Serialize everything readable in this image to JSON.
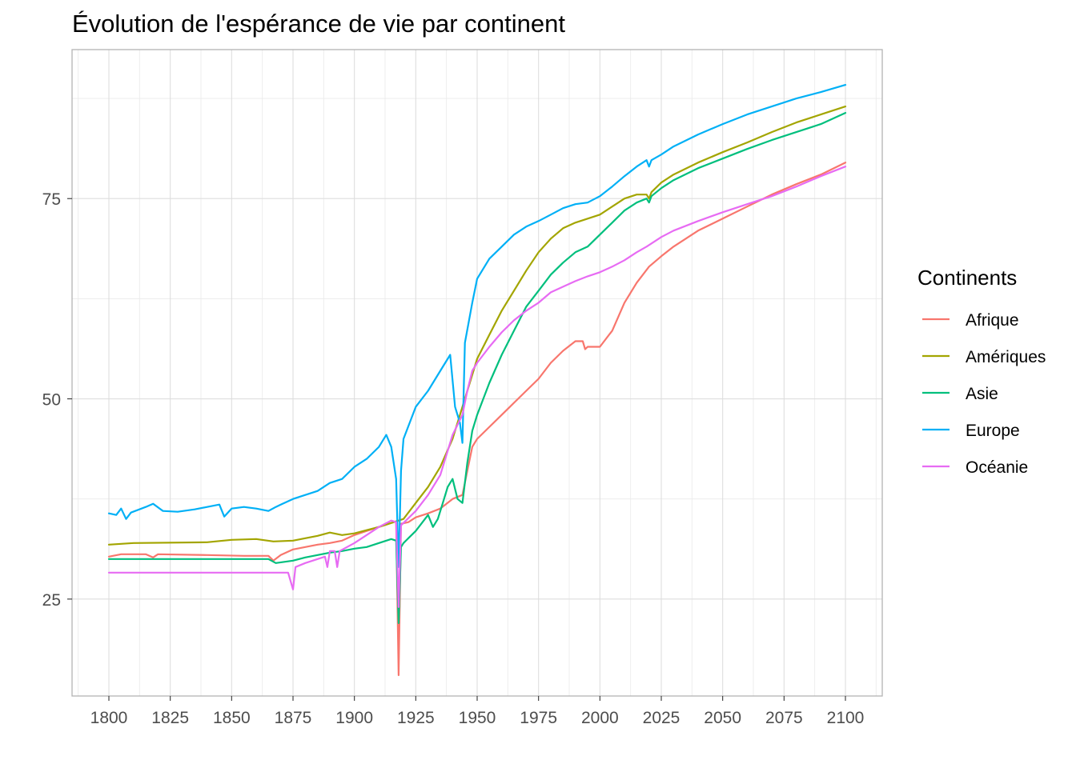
{
  "chart_data": {
    "type": "line",
    "title": "Évolution de l'espérance de vie par continent",
    "xlabel": "",
    "ylabel": "",
    "x_ticks": [
      1800,
      1825,
      1850,
      1875,
      1900,
      1925,
      1950,
      1975,
      2000,
      2025,
      2050,
      2075,
      2100
    ],
    "y_ticks": [
      25,
      50,
      75
    ],
    "xlim": [
      1785,
      2115
    ],
    "ylim": [
      12.9,
      93.6
    ],
    "grid": true,
    "legend": {
      "title": "Continents",
      "position": "right"
    },
    "series": [
      {
        "name": "Afrique",
        "color": "#F8766D",
        "points": [
          [
            1800,
            30.3
          ],
          [
            1805,
            30.6
          ],
          [
            1815,
            30.6
          ],
          [
            1818,
            30.2
          ],
          [
            1820,
            30.6
          ],
          [
            1840,
            30.5
          ],
          [
            1855,
            30.4
          ],
          [
            1865,
            30.4
          ],
          [
            1867,
            29.8
          ],
          [
            1870,
            30.5
          ],
          [
            1875,
            31.2
          ],
          [
            1880,
            31.5
          ],
          [
            1885,
            31.8
          ],
          [
            1890,
            32.0
          ],
          [
            1895,
            32.3
          ],
          [
            1900,
            33.0
          ],
          [
            1905,
            33.5
          ],
          [
            1910,
            34.0
          ],
          [
            1915,
            34.5
          ],
          [
            1917,
            34.7
          ],
          [
            1918,
            15.5
          ],
          [
            1919,
            34.4
          ],
          [
            1922,
            34.6
          ],
          [
            1925,
            35.2
          ],
          [
            1930,
            35.7
          ],
          [
            1935,
            36.3
          ],
          [
            1940,
            37.5
          ],
          [
            1944,
            38.0
          ],
          [
            1946,
            41.0
          ],
          [
            1948,
            44.0
          ],
          [
            1950,
            45.0
          ],
          [
            1955,
            46.5
          ],
          [
            1960,
            48.0
          ],
          [
            1965,
            49.5
          ],
          [
            1970,
            51.0
          ],
          [
            1975,
            52.5
          ],
          [
            1980,
            54.5
          ],
          [
            1985,
            56.0
          ],
          [
            1990,
            57.2
          ],
          [
            1993,
            57.2
          ],
          [
            1994,
            56.2
          ],
          [
            1995,
            56.5
          ],
          [
            2000,
            56.5
          ],
          [
            2005,
            58.5
          ],
          [
            2010,
            62.0
          ],
          [
            2015,
            64.5
          ],
          [
            2020,
            66.5
          ],
          [
            2025,
            67.8
          ],
          [
            2030,
            69.0
          ],
          [
            2040,
            71.0
          ],
          [
            2050,
            72.5
          ],
          [
            2060,
            74.0
          ],
          [
            2070,
            75.5
          ],
          [
            2080,
            76.8
          ],
          [
            2090,
            78.0
          ],
          [
            2100,
            79.5
          ]
        ]
      },
      {
        "name": "Amériques",
        "color": "#A3A500",
        "points": [
          [
            1800,
            31.8
          ],
          [
            1810,
            32.0
          ],
          [
            1840,
            32.1
          ],
          [
            1850,
            32.4
          ],
          [
            1860,
            32.5
          ],
          [
            1867,
            32.2
          ],
          [
            1875,
            32.3
          ],
          [
            1880,
            32.6
          ],
          [
            1885,
            32.9
          ],
          [
            1890,
            33.3
          ],
          [
            1895,
            33.0
          ],
          [
            1900,
            33.2
          ],
          [
            1905,
            33.6
          ],
          [
            1910,
            34.0
          ],
          [
            1915,
            34.5
          ],
          [
            1918,
            34.8
          ],
          [
            1920,
            35.0
          ],
          [
            1925,
            37.0
          ],
          [
            1930,
            39.0
          ],
          [
            1935,
            41.5
          ],
          [
            1940,
            45.0
          ],
          [
            1945,
            50.0
          ],
          [
            1950,
            55.0
          ],
          [
            1955,
            58.0
          ],
          [
            1960,
            61.0
          ],
          [
            1965,
            63.5
          ],
          [
            1970,
            66.0
          ],
          [
            1975,
            68.3
          ],
          [
            1980,
            70.0
          ],
          [
            1985,
            71.3
          ],
          [
            1990,
            72.0
          ],
          [
            1995,
            72.5
          ],
          [
            2000,
            73.0
          ],
          [
            2005,
            74.0
          ],
          [
            2010,
            75.0
          ],
          [
            2015,
            75.5
          ],
          [
            2019,
            75.5
          ],
          [
            2020,
            75.0
          ],
          [
            2021,
            75.8
          ],
          [
            2025,
            77.0
          ],
          [
            2030,
            78.0
          ],
          [
            2040,
            79.5
          ],
          [
            2050,
            80.8
          ],
          [
            2060,
            82.0
          ],
          [
            2070,
            83.3
          ],
          [
            2080,
            84.5
          ],
          [
            2090,
            85.5
          ],
          [
            2100,
            86.5
          ]
        ]
      },
      {
        "name": "Asie",
        "color": "#00BF7D",
        "points": [
          [
            1800,
            30.0
          ],
          [
            1810,
            30.0
          ],
          [
            1830,
            30.0
          ],
          [
            1850,
            30.0
          ],
          [
            1865,
            30.0
          ],
          [
            1868,
            29.5
          ],
          [
            1875,
            29.8
          ],
          [
            1880,
            30.2
          ],
          [
            1885,
            30.5
          ],
          [
            1890,
            30.8
          ],
          [
            1895,
            31.0
          ],
          [
            1900,
            31.3
          ],
          [
            1905,
            31.5
          ],
          [
            1910,
            32.0
          ],
          [
            1915,
            32.5
          ],
          [
            1917,
            32.3
          ],
          [
            1918,
            22.0
          ],
          [
            1919,
            31.5
          ],
          [
            1920,
            32.0
          ],
          [
            1925,
            33.5
          ],
          [
            1930,
            35.5
          ],
          [
            1932,
            34.0
          ],
          [
            1934,
            35.0
          ],
          [
            1936,
            37.0
          ],
          [
            1938,
            39.0
          ],
          [
            1940,
            40.0
          ],
          [
            1942,
            37.5
          ],
          [
            1944,
            37.0
          ],
          [
            1946,
            42.0
          ],
          [
            1948,
            46.0
          ],
          [
            1950,
            48.0
          ],
          [
            1955,
            52.0
          ],
          [
            1960,
            55.5
          ],
          [
            1965,
            58.5
          ],
          [
            1970,
            61.5
          ],
          [
            1975,
            63.5
          ],
          [
            1980,
            65.5
          ],
          [
            1985,
            67.0
          ],
          [
            1990,
            68.3
          ],
          [
            1995,
            69.0
          ],
          [
            2000,
            70.5
          ],
          [
            2005,
            72.0
          ],
          [
            2010,
            73.5
          ],
          [
            2015,
            74.5
          ],
          [
            2019,
            75.0
          ],
          [
            2020,
            74.5
          ],
          [
            2021,
            75.3
          ],
          [
            2025,
            76.3
          ],
          [
            2030,
            77.3
          ],
          [
            2040,
            78.8
          ],
          [
            2050,
            80.0
          ],
          [
            2060,
            81.2
          ],
          [
            2070,
            82.3
          ],
          [
            2080,
            83.3
          ],
          [
            2090,
            84.3
          ],
          [
            2100,
            85.7
          ]
        ]
      },
      {
        "name": "Europe",
        "color": "#00B0F6",
        "points": [
          [
            1800,
            35.7
          ],
          [
            1803,
            35.5
          ],
          [
            1805,
            36.3
          ],
          [
            1807,
            35.0
          ],
          [
            1809,
            35.8
          ],
          [
            1815,
            36.5
          ],
          [
            1818,
            36.9
          ],
          [
            1822,
            36.0
          ],
          [
            1828,
            35.9
          ],
          [
            1835,
            36.2
          ],
          [
            1840,
            36.5
          ],
          [
            1845,
            36.8
          ],
          [
            1847,
            35.3
          ],
          [
            1850,
            36.3
          ],
          [
            1855,
            36.5
          ],
          [
            1860,
            36.3
          ],
          [
            1865,
            36.0
          ],
          [
            1868,
            36.5
          ],
          [
            1870,
            36.8
          ],
          [
            1875,
            37.5
          ],
          [
            1880,
            38.0
          ],
          [
            1885,
            38.5
          ],
          [
            1890,
            39.5
          ],
          [
            1895,
            40.0
          ],
          [
            1900,
            41.5
          ],
          [
            1905,
            42.5
          ],
          [
            1910,
            44.0
          ],
          [
            1913,
            45.5
          ],
          [
            1915,
            44.0
          ],
          [
            1917,
            40.0
          ],
          [
            1918,
            29.0
          ],
          [
            1919,
            41.0
          ],
          [
            1920,
            45.0
          ],
          [
            1925,
            49.0
          ],
          [
            1930,
            51.0
          ],
          [
            1935,
            53.5
          ],
          [
            1939,
            55.5
          ],
          [
            1941,
            49.0
          ],
          [
            1943,
            47.0
          ],
          [
            1944,
            44.5
          ],
          [
            1945,
            57.0
          ],
          [
            1948,
            62.0
          ],
          [
            1950,
            65.0
          ],
          [
            1955,
            67.5
          ],
          [
            1960,
            69.0
          ],
          [
            1965,
            70.5
          ],
          [
            1970,
            71.5
          ],
          [
            1975,
            72.2
          ],
          [
            1980,
            73.0
          ],
          [
            1985,
            73.8
          ],
          [
            1990,
            74.3
          ],
          [
            1995,
            74.5
          ],
          [
            2000,
            75.3
          ],
          [
            2005,
            76.5
          ],
          [
            2010,
            77.8
          ],
          [
            2015,
            79.0
          ],
          [
            2019,
            79.8
          ],
          [
            2020,
            79.0
          ],
          [
            2021,
            79.8
          ],
          [
            2025,
            80.5
          ],
          [
            2030,
            81.5
          ],
          [
            2040,
            83.0
          ],
          [
            2050,
            84.3
          ],
          [
            2060,
            85.5
          ],
          [
            2070,
            86.5
          ],
          [
            2080,
            87.5
          ],
          [
            2090,
            88.3
          ],
          [
            2100,
            89.2
          ]
        ]
      },
      {
        "name": "Océanie",
        "color": "#E76BF3",
        "points": [
          [
            1800,
            28.3
          ],
          [
            1820,
            28.3
          ],
          [
            1840,
            28.3
          ],
          [
            1860,
            28.3
          ],
          [
            1873,
            28.3
          ],
          [
            1875,
            26.2
          ],
          [
            1876,
            29.0
          ],
          [
            1880,
            29.5
          ],
          [
            1885,
            30.0
          ],
          [
            1888,
            30.3
          ],
          [
            1889,
            29.0
          ],
          [
            1890,
            31.0
          ],
          [
            1892,
            31.0
          ],
          [
            1893,
            29.0
          ],
          [
            1894,
            31.0
          ],
          [
            1900,
            32.0
          ],
          [
            1905,
            33.0
          ],
          [
            1910,
            34.0
          ],
          [
            1915,
            34.8
          ],
          [
            1917,
            34.6
          ],
          [
            1918,
            24.0
          ],
          [
            1919,
            34.2
          ],
          [
            1925,
            36.0
          ],
          [
            1930,
            38.0
          ],
          [
            1935,
            40.5
          ],
          [
            1940,
            45.5
          ],
          [
            1944,
            48.0
          ],
          [
            1946,
            51.0
          ],
          [
            1948,
            53.5
          ],
          [
            1950,
            54.5
          ],
          [
            1955,
            56.5
          ],
          [
            1960,
            58.3
          ],
          [
            1965,
            59.8
          ],
          [
            1970,
            61.0
          ],
          [
            1975,
            62.0
          ],
          [
            1980,
            63.3
          ],
          [
            1985,
            64.0
          ],
          [
            1990,
            64.7
          ],
          [
            1995,
            65.3
          ],
          [
            2000,
            65.8
          ],
          [
            2005,
            66.5
          ],
          [
            2010,
            67.3
          ],
          [
            2015,
            68.3
          ],
          [
            2019,
            69.0
          ],
          [
            2020,
            69.2
          ],
          [
            2025,
            70.2
          ],
          [
            2030,
            71.0
          ],
          [
            2040,
            72.2
          ],
          [
            2050,
            73.3
          ],
          [
            2060,
            74.3
          ],
          [
            2070,
            75.3
          ],
          [
            2080,
            76.5
          ],
          [
            2090,
            77.8
          ],
          [
            2100,
            79.0
          ]
        ]
      }
    ]
  }
}
